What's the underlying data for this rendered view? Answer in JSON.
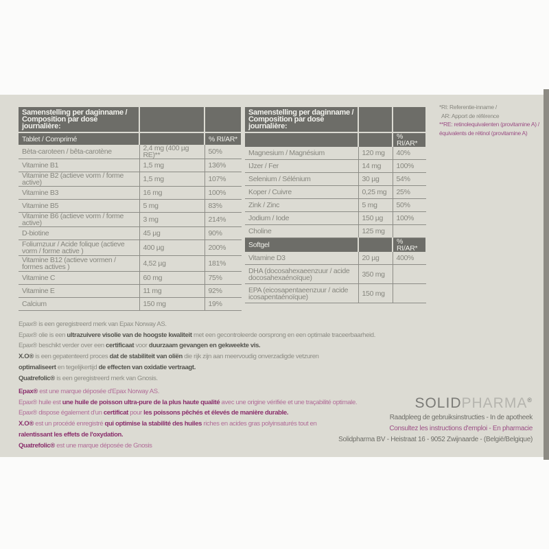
{
  "table_tablet": {
    "header": "Samenstelling per daginname / Composition par dose journalière:",
    "subheader": "Tablet / Comprimé",
    "pct_label": "% RI/AR*",
    "rows": [
      [
        "Bèta-caroteen / bêta-carotène",
        "2,4 mg (400 µg RE)**",
        "50%"
      ],
      [
        "Vitamine B1",
        "1,5 mg",
        "136%"
      ],
      [
        "Vitamine B2 (actieve vorm / forme active)",
        "1,5 mg",
        "107%"
      ],
      [
        "Vitamine B3",
        "16 mg",
        "100%"
      ],
      [
        "Vitamine B5",
        "5 mg",
        "83%"
      ],
      [
        "Vitamine B6 (actieve vorm / forme active)",
        "3 mg",
        "214%"
      ],
      [
        "D-biotine",
        "45 µg",
        "90%"
      ],
      [
        "Foliumzuur / Acide folique (actieve vorm / forme active )",
        "400 µg",
        "200%"
      ],
      [
        "Vitamine B12 (actieve vormen / formes actives )",
        "4,52 µg",
        "181%"
      ],
      [
        "Vitamine C",
        "60 mg",
        "75%"
      ],
      [
        "Vitamine E",
        "11 mg",
        "92%"
      ],
      [
        "Calcium",
        "150 mg",
        "19%"
      ]
    ]
  },
  "table_minerals": {
    "header": "Samenstelling per daginname / Composition par dose journalière:",
    "pct_label": "% RI/AR*",
    "rows": [
      [
        "Magnesium / Magnésium",
        "120 mg",
        "40%"
      ],
      [
        "IJzer / Fer",
        "14 mg",
        "100%"
      ],
      [
        "Selenium / Sélénium",
        "30 µg",
        "54%"
      ],
      [
        "Koper / Cuivre",
        "0,25 mg",
        "25%"
      ],
      [
        "Zink / Zinc",
        "5 mg",
        "50%"
      ],
      [
        "Jodium / Iode",
        "150 µg",
        "100%"
      ],
      [
        "Choline",
        "125 mg",
        ""
      ]
    ],
    "softgel_label": "Softgel",
    "softgel_pct_label": "% RI/AR*",
    "softgel_rows": [
      [
        "Vitamine D3",
        "20 µg",
        "400%"
      ],
      [
        "DHA (docosahexaeenzuur / acide docosahexaénoïque)",
        "350 mg",
        ""
      ],
      [
        "EPA (eicosapentaeenzuur / acide icosapentaénoïque)",
        "150 mg",
        ""
      ]
    ]
  },
  "notes": {
    "ri": "*RI: Referentie-inname /",
    "ar": "AR: Apport de référence",
    "re_nl": "**RE: retinolequivalenten (provitamine A) /",
    "re_fr": "équivalents de rétinol (provitamine A)"
  },
  "text_nl": [
    [
      [
        "Epax® is een geregistreerd merk van Epax Norway AS.",
        0
      ]
    ],
    [
      [
        "Epax® olie is een ",
        0
      ],
      [
        "ultrazuivere visolie van de hoogste kwaliteit",
        1
      ],
      [
        " met een gecontroleerde oorsprong en een optimale traceerbaarheid.",
        0
      ]
    ],
    [
      [
        "Epax® beschikt verder over een ",
        0
      ],
      [
        "certificaat",
        1
      ],
      [
        " voor ",
        0
      ],
      [
        "duurzaam gevangen en gekweekte vis.",
        1
      ]
    ],
    [
      [
        "X.O® ",
        1
      ],
      [
        "is een gepatenteerd proces ",
        0
      ],
      [
        "dat de stabiliteit van oliën",
        1
      ],
      [
        " die rijk zijn aan meervoudig onverzadigde vetzuren",
        0
      ]
    ],
    [
      [
        "optimaliseert",
        1
      ],
      [
        " en tegelijkertijd ",
        0
      ],
      [
        "de effecten van oxidatie vertraagt.",
        1
      ]
    ],
    [
      [
        "Quatrefolic®",
        1
      ],
      [
        " is een geregistreerd merk van Gnosis.",
        0
      ]
    ]
  ],
  "text_fr": [
    [
      [
        "Epax®",
        1
      ],
      [
        " est une marque déposée d'Epax Norway AS.",
        0
      ]
    ],
    [
      [
        "Epax® huile est ",
        0
      ],
      [
        "une huile de poisson ultra-pure de la plus haute qualité",
        1
      ],
      [
        " avec une origine vérifiée et une traçabilité optimale.",
        0
      ]
    ],
    [
      [
        "Epax® dispose également d'un ",
        0
      ],
      [
        "certificat",
        1
      ],
      [
        " pour ",
        0
      ],
      [
        "les poissons pêchés et élevés de manière durable.",
        1
      ]
    ],
    [
      [
        "X.O®",
        1
      ],
      [
        " est un procédé enregistré ",
        0
      ],
      [
        "qui optimise la stabilité des huiles",
        1
      ],
      [
        " riches en acides gras polyinsaturés tout en",
        0
      ]
    ],
    [
      [
        "ralentissant les effets de l'oxydation.",
        1
      ]
    ],
    [
      [
        "Quatrefolic®",
        1
      ],
      [
        " est une marque déposée de Gnosis",
        0
      ]
    ]
  ],
  "brand": {
    "logo_part1": "SOLID",
    "logo_part2": "PHARMA",
    "logo_mark": "®",
    "line_nl": "Raadpleeg de gebruiksinstructies - In de apotheek",
    "line_fr": "Consultez les instructions d'emploi - En pharmacie",
    "address": "Solidpharma BV - Heistraat 16 - 9052 Zwijnaarde - (België/Belgique)"
  },
  "colors": {
    "panel": "#dcdbd3",
    "header": "#6d6d68",
    "french_text": "#9b4f85"
  }
}
